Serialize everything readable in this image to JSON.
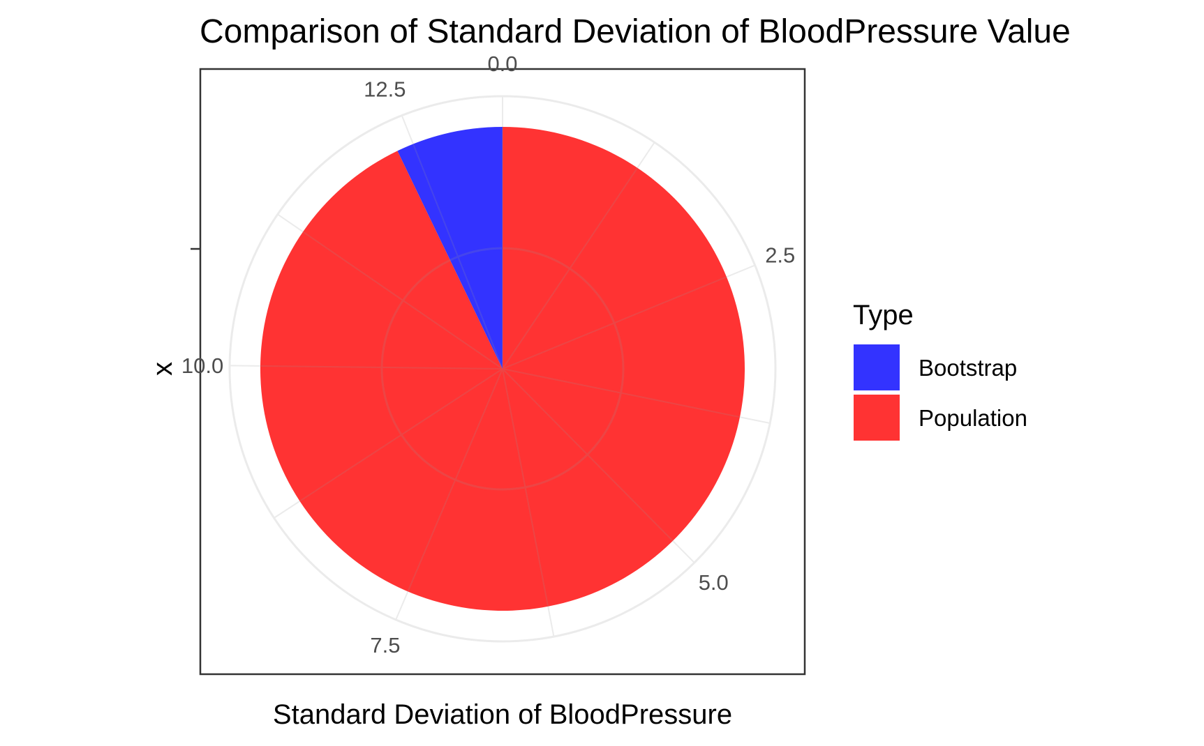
{
  "chart_data": {
    "type": "pie",
    "title": "Comparison of Standard Deviation of BloodPressure Value",
    "xlabel": "Standard Deviation of BloodPressure",
    "ylabel": "x",
    "theta_ticks": [
      "0.0",
      "2.5",
      "5.0",
      "7.5",
      "10.0",
      "12.5"
    ],
    "theta_range": [
      0,
      13.3
    ],
    "legend": {
      "title": "Type",
      "position": "right"
    },
    "series": [
      {
        "name": "Population",
        "value": 12.35,
        "color": "#ff3333"
      },
      {
        "name": "Bootstrap",
        "value": 0.95,
        "color": "#3333ff"
      }
    ],
    "grid": true
  }
}
